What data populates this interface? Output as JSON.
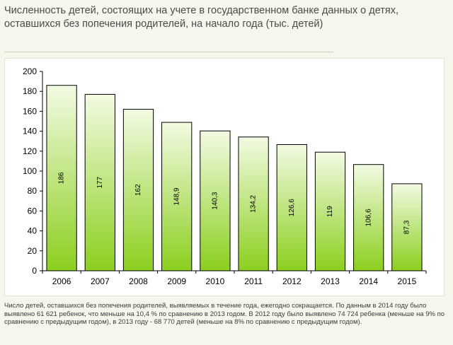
{
  "title": "Численность детей, состоящих на учете в государственном банке данных о детях, оставшихся без попечения родителей, на начало года (тыс. детей)",
  "footnote": "Число детей, оставшихся без попечения родителей, выявляемых в течение года, ежегодно сокращается. По данным в 2014 году было выявлено 61 621 ребенок, что меньше на 10,4 % по сравнению в 2013 годом. В 2012 году было выявлено 74 724 ребенка (меньше на 9% по сравнению с предыдущим годом), в 2013 году - 68 770 детей (меньше на 8% по сравнению с предыдущим годом).",
  "colors": {
    "bar_top": "#f2fbe3",
    "bar_bottom": "#8ccf1e",
    "bar_outline": "#000000",
    "axis": "#000000"
  },
  "chart_data": {
    "type": "bar",
    "categories": [
      "2006",
      "2007",
      "2008",
      "2009",
      "2010",
      "2011",
      "2012",
      "2013",
      "2014",
      "2015"
    ],
    "values": [
      186,
      177,
      162,
      148.9,
      140.3,
      134.2,
      126.6,
      119,
      106.6,
      87.3
    ],
    "value_labels": [
      "186",
      "177",
      "162",
      "148,9",
      "140,3",
      "134,2",
      "126,6",
      "119",
      "106,6",
      "87,3"
    ],
    "y_ticks": [
      "0",
      "20",
      "40",
      "60",
      "80",
      "100",
      "120",
      "140",
      "160",
      "180",
      "200"
    ],
    "ylim": [
      0,
      200
    ],
    "grid": false,
    "legend": "none",
    "data_label_orientation": "vertical"
  }
}
